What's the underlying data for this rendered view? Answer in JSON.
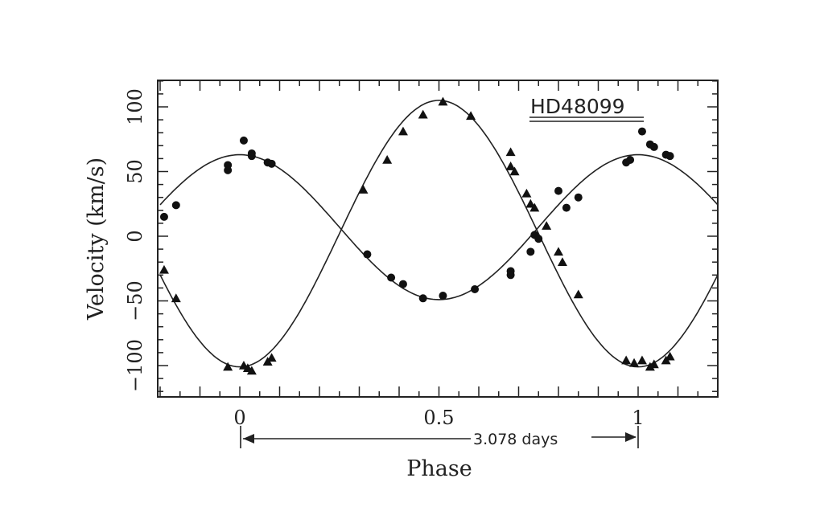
{
  "chart_data": {
    "type": "scatter",
    "title": "",
    "annotation_star": "HD48099",
    "annotation_period": "3.078 days",
    "xlabel": "Phase",
    "ylabel": "Velocity (km/s)",
    "xlim": [
      -0.2,
      1.2
    ],
    "ylim": [
      -120,
      120
    ],
    "x_ticks": [
      0,
      0.5,
      1
    ],
    "x_tick_labels": [
      "0",
      "0.5",
      "1"
    ],
    "y_ticks": [
      -100,
      -50,
      0,
      50,
      100
    ],
    "y_tick_labels": [
      "−100",
      "−50",
      "0",
      "50",
      "100"
    ],
    "grid": false,
    "legend": "none",
    "fit_curves": [
      {
        "gamma": 7,
        "amplitude": 56,
        "phase_of_max": 0.0
      },
      {
        "gamma": 2,
        "amplitude": 103,
        "phase_of_max": 0.5
      }
    ],
    "series": [
      {
        "marker": "circle",
        "points": [
          [
            -0.19,
            15
          ],
          [
            -0.16,
            24
          ],
          [
            -0.03,
            51
          ],
          [
            -0.03,
            55
          ],
          [
            0.01,
            74
          ],
          [
            0.03,
            64
          ],
          [
            0.03,
            62
          ],
          [
            0.07,
            57
          ],
          [
            0.08,
            56
          ],
          [
            0.32,
            -14
          ],
          [
            0.38,
            -32
          ],
          [
            0.41,
            -37
          ],
          [
            0.46,
            -48
          ],
          [
            0.51,
            -46
          ],
          [
            0.59,
            -41
          ],
          [
            0.68,
            -27
          ],
          [
            0.68,
            -30
          ],
          [
            0.73,
            -12
          ],
          [
            0.74,
            1
          ],
          [
            0.75,
            -2
          ],
          [
            0.8,
            35
          ],
          [
            0.82,
            22
          ],
          [
            0.85,
            30
          ],
          [
            0.97,
            57
          ],
          [
            0.98,
            59
          ],
          [
            1.01,
            81
          ],
          [
            1.03,
            71
          ],
          [
            1.04,
            69
          ],
          [
            1.07,
            63
          ],
          [
            1.08,
            62
          ]
        ]
      },
      {
        "marker": "triangle",
        "points": [
          [
            -0.19,
            -26
          ],
          [
            -0.16,
            -48
          ],
          [
            -0.03,
            -101
          ],
          [
            0.01,
            -100
          ],
          [
            0.02,
            -102
          ],
          [
            0.03,
            -104
          ],
          [
            0.07,
            -97
          ],
          [
            0.08,
            -94
          ],
          [
            0.31,
            36
          ],
          [
            0.37,
            59
          ],
          [
            0.41,
            81
          ],
          [
            0.46,
            94
          ],
          [
            0.51,
            104
          ],
          [
            0.58,
            93
          ],
          [
            0.68,
            65
          ],
          [
            0.68,
            54
          ],
          [
            0.69,
            50
          ],
          [
            0.72,
            33
          ],
          [
            0.73,
            25
          ],
          [
            0.74,
            22
          ],
          [
            0.77,
            8
          ],
          [
            0.8,
            -12
          ],
          [
            0.81,
            -20
          ],
          [
            0.85,
            -45
          ],
          [
            0.97,
            -96
          ],
          [
            0.99,
            -98
          ],
          [
            1.01,
            -96
          ],
          [
            1.03,
            -101
          ],
          [
            1.04,
            -99
          ],
          [
            1.07,
            -96
          ],
          [
            1.08,
            -93
          ]
        ]
      }
    ]
  }
}
